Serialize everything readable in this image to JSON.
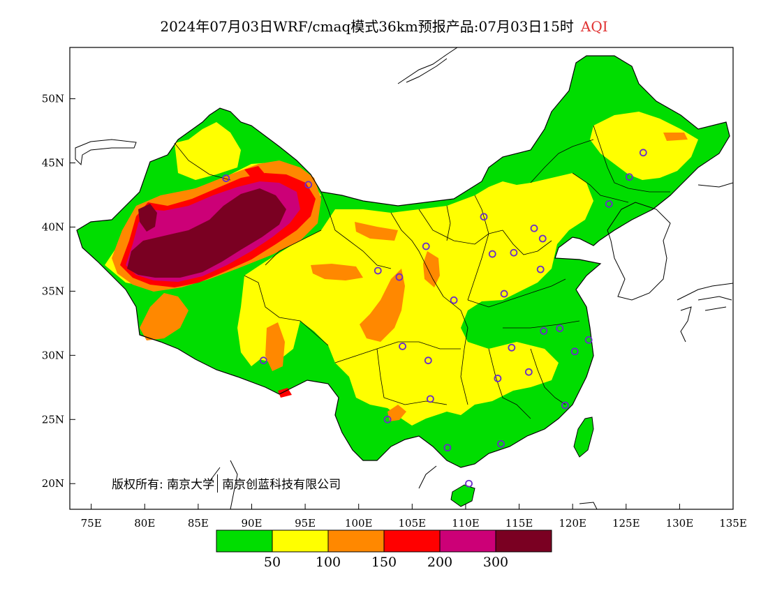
{
  "title": "2024年07月03日WRF/cmaq模式36km预报产品:07月03日15时",
  "title_metric": "AQI",
  "copyright": {
    "prefix": "版权所有:",
    "org1": "南京大学",
    "org2": "南京创蓝科技有限公司"
  },
  "axes": {
    "lon_ticks": [
      "75E",
      "80E",
      "85E",
      "90E",
      "95E",
      "100E",
      "105E",
      "110E",
      "115E",
      "120E",
      "125E",
      "130E",
      "135E"
    ],
    "lat_ticks": [
      "50N",
      "45N",
      "40N",
      "35N",
      "30N",
      "25N",
      "20N"
    ]
  },
  "legend": {
    "colors": [
      "#00dd00",
      "#ffff00",
      "#ff8800",
      "#ff0000",
      "#cc0077",
      "#7a0022"
    ],
    "labels": [
      "50",
      "100",
      "150",
      "200",
      "300"
    ]
  },
  "chart_data": {
    "type": "heatmap",
    "title": "2024年07月03日WRF/cmaq模式36km预报产品:07月03日15时 AQI",
    "xlim": [
      73,
      135
    ],
    "ylim": [
      18,
      54
    ],
    "variable": "AQI",
    "levels": [
      50,
      100,
      150,
      200,
      300
    ],
    "level_colors": [
      "#00dd00",
      "#ffff00",
      "#ff8800",
      "#ff0000",
      "#cc0077",
      "#7a0022"
    ],
    "grid": false,
    "station_marker_color": "#6a2cc8",
    "stations": [
      {
        "lon": 87.6,
        "lat": 43.8
      },
      {
        "lon": 95.3,
        "lat": 43.3
      },
      {
        "lon": 91.1,
        "lat": 29.6
      },
      {
        "lon": 101.8,
        "lat": 36.6
      },
      {
        "lon": 103.8,
        "lat": 36.1
      },
      {
        "lon": 106.3,
        "lat": 38.5
      },
      {
        "lon": 111.7,
        "lat": 40.8
      },
      {
        "lon": 116.4,
        "lat": 39.9
      },
      {
        "lon": 117.2,
        "lat": 39.1
      },
      {
        "lon": 114.5,
        "lat": 38.0
      },
      {
        "lon": 112.5,
        "lat": 37.9
      },
      {
        "lon": 117.0,
        "lat": 36.7
      },
      {
        "lon": 113.6,
        "lat": 34.8
      },
      {
        "lon": 108.9,
        "lat": 34.3
      },
      {
        "lon": 104.1,
        "lat": 30.7
      },
      {
        "lon": 106.5,
        "lat": 29.6
      },
      {
        "lon": 114.3,
        "lat": 30.6
      },
      {
        "lon": 117.3,
        "lat": 31.9
      },
      {
        "lon": 118.8,
        "lat": 32.1
      },
      {
        "lon": 121.5,
        "lat": 31.2
      },
      {
        "lon": 120.2,
        "lat": 30.3
      },
      {
        "lon": 115.9,
        "lat": 28.7
      },
      {
        "lon": 113.0,
        "lat": 28.2
      },
      {
        "lon": 106.7,
        "lat": 26.6
      },
      {
        "lon": 102.7,
        "lat": 25.0
      },
      {
        "lon": 119.3,
        "lat": 26.1
      },
      {
        "lon": 113.3,
        "lat": 23.1
      },
      {
        "lon": 108.3,
        "lat": 22.8
      },
      {
        "lon": 110.3,
        "lat": 20.0
      },
      {
        "lon": 123.4,
        "lat": 41.8
      },
      {
        "lon": 125.3,
        "lat": 43.9
      },
      {
        "lon": 126.6,
        "lat": 45.8
      }
    ]
  }
}
